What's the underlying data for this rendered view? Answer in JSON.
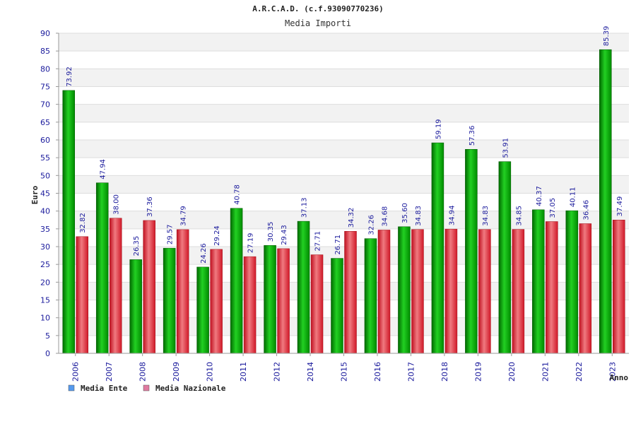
{
  "chart_data": {
    "type": "bar",
    "title": "A.R.C.A.D. (c.f.93090770236)",
    "subtitle": "Media Importi",
    "xlabel": "Anno",
    "ylabel": "Euro",
    "ylim": [
      0,
      90
    ],
    "ytick_step": 5,
    "categories": [
      "2006",
      "2007",
      "2008",
      "2009",
      "2010",
      "2011",
      "2012",
      "2014",
      "2015",
      "2016",
      "2017",
      "2018",
      "2019",
      "2020",
      "2021",
      "2022",
      "2023"
    ],
    "series": [
      {
        "name": "Media Ente",
        "color": "#00b000",
        "legend_color": "#5599ee",
        "values": [
          73.92,
          47.94,
          26.35,
          29.57,
          24.26,
          40.78,
          30.35,
          37.13,
          26.71,
          32.26,
          35.6,
          59.19,
          57.36,
          53.91,
          40.37,
          40.11,
          85.39
        ],
        "labels": [
          "73.92",
          "47.94",
          "26.35",
          "29.57",
          "24.26",
          "40.78",
          "30.35",
          "37.13",
          "26.71",
          "32.26",
          "35.60",
          "59.19",
          "57.36",
          "53.91",
          "40.37",
          "40.11",
          "85.39"
        ]
      },
      {
        "name": "Media Nazionale",
        "color": "#e8303a",
        "legend_color": "#e07aa0",
        "values": [
          32.82,
          38.0,
          37.36,
          34.79,
          29.24,
          27.19,
          29.43,
          27.71,
          34.32,
          34.68,
          34.83,
          34.94,
          34.83,
          34.85,
          37.05,
          36.46,
          37.49
        ],
        "labels": [
          "32.82",
          "38.00",
          "37.36",
          "34.79",
          "29.24",
          "27.19",
          "29.43",
          "27.71",
          "34.32",
          "34.68",
          "34.83",
          "34.94",
          "34.83",
          "34.85",
          "37.05",
          "36.46",
          "37.49"
        ]
      }
    ],
    "grid": true,
    "legend_position": "bottom-left"
  }
}
